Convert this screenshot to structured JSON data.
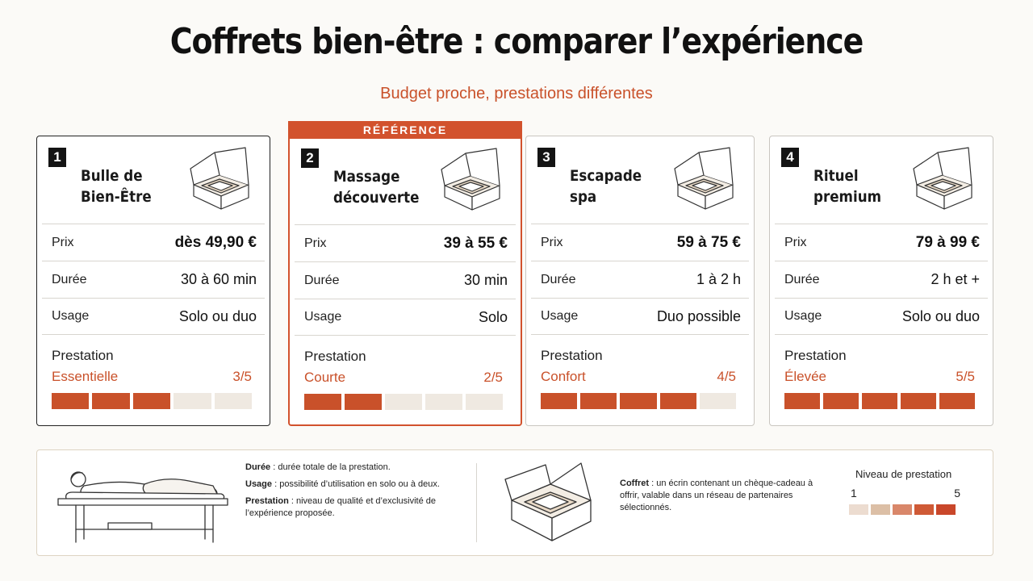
{
  "header": {
    "title": "Coffrets bien-être : comparer l’expérience",
    "subtitle": "Budget proche, prestations différentes"
  },
  "reference_label": "RÉFÉRENCE",
  "row_labels": {
    "price": "Prix",
    "duration": "Durée",
    "usage": "Usage",
    "service": "Prestation"
  },
  "cards": [
    {
      "number": "1",
      "name": "Bulle de Bien-Être",
      "price": "dès 49,90 €",
      "duration": "30 à 60 min",
      "usage": "Solo ou duo",
      "level_word": "Essentielle",
      "level_score": "3/5",
      "level": 3,
      "icon": "gift-box-icon"
    },
    {
      "number": "2",
      "name": "Massage découverte",
      "price": "39 à 55 €",
      "duration": "30 min",
      "usage": "Solo",
      "level_word": "Courte",
      "level_score": "2/5",
      "level": 2,
      "icon": "gift-box-icon",
      "reference": true
    },
    {
      "number": "3",
      "name": "Escapade spa",
      "price": "59 à 75 €",
      "duration": "1 à 2 h",
      "usage": "Duo possible",
      "level_word": "Confort",
      "level_score": "4/5",
      "level": 4,
      "icon": "gift-box-icon"
    },
    {
      "number": "4",
      "name": "Rituel premium",
      "price": "79 à 99 €",
      "duration": "2 h et +",
      "usage": "Solo ou duo",
      "level_word": "Élevée",
      "level_score": "5/5",
      "level": 5,
      "icon": "gift-box-icon"
    }
  ],
  "legend": {
    "duration_term": "Durée",
    "duration_def": " : durée totale de la prestation.",
    "usage_term": "Usage",
    "usage_def": " : possibilité d’utilisation en solo ou à deux.",
    "service_term": "Prestation",
    "service_def": " : niveau de qualité et d’exclusivité de l’expérience proposée.",
    "coffret_term": "Coffret",
    "coffret_def": " : un écrin contenant un chèque-cadeau à offrir, valable dans un réseau de partenaires sélectionnés.",
    "scale_title": "Niveau de prestation",
    "scale_min": "1",
    "scale_max": "5",
    "scale_colors": [
      "#ecdcd0",
      "#dcbfa6",
      "#d9876a",
      "#cf5a36",
      "#c9472a"
    ]
  },
  "colors": {
    "accent": "#c9512a",
    "reference_border": "#d2522d",
    "segment_off": "#efe9e1"
  }
}
